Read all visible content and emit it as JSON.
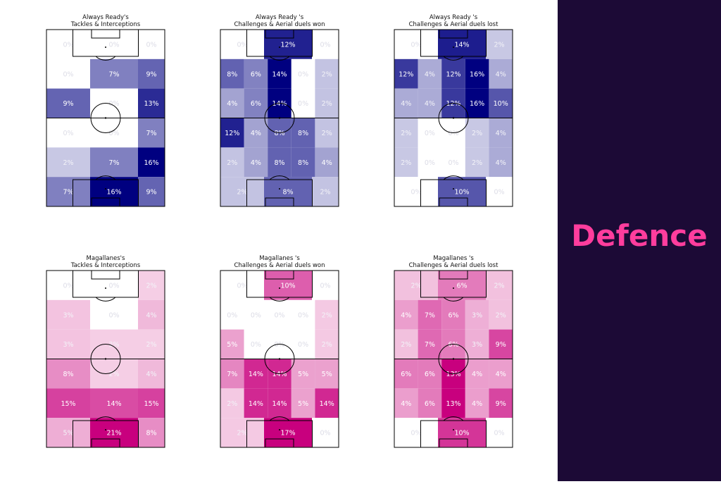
{
  "sidebar": {
    "title": "Defence"
  },
  "colors": {
    "blue": "#000080",
    "pink": "#c8007e",
    "sidebar_bg": "#1c0a36",
    "sidebar_title": "#ff3d9d"
  },
  "chart_data": [
    {
      "type": "heatmap",
      "color": "blue",
      "title_lines": [
        "Always Ready's",
        "Tackles & Interceptions"
      ],
      "rows": [
        [
          {
            "v": 0,
            "l": "0%"
          },
          {
            "v": 0,
            "l": "0%"
          },
          {
            "v": 0,
            "l": "0%"
          }
        ],
        [
          {
            "v": 0,
            "l": "0%"
          },
          {
            "v": 7,
            "l": "7%"
          },
          {
            "v": 9,
            "l": "9%"
          }
        ],
        [
          {
            "v": 9,
            "l": "9%"
          },
          {
            "v": 0,
            "l": "0%"
          },
          {
            "v": 13,
            "l": "13%"
          }
        ],
        [
          {
            "v": 0,
            "l": "0%"
          },
          {
            "v": 0,
            "l": "0%"
          },
          {
            "v": 7,
            "l": "7%"
          }
        ],
        [
          {
            "v": 2,
            "l": "2%"
          },
          {
            "v": 7,
            "l": "7%"
          },
          {
            "v": 16,
            "l": "16%"
          }
        ],
        [
          {
            "v": 7,
            "l": "7%"
          },
          {
            "v": 16,
            "l": "16%"
          },
          {
            "v": 9,
            "l": "9%"
          }
        ]
      ]
    },
    {
      "type": "heatmap",
      "color": "blue",
      "title_lines": [
        "Always Ready 's",
        "Challenges & Aerial duels won"
      ],
      "rows": [
        [
          {
            "v": 0,
            "l": "0%"
          },
          {
            "v": 12,
            "l": "12%"
          },
          {
            "v": 0,
            "l": "0%"
          }
        ],
        [
          {
            "v": 8,
            "l": "8%"
          },
          {
            "v": 6,
            "l": "6%"
          },
          {
            "v": 14,
            "l": "14%"
          },
          {
            "v": 0,
            "l": "0%"
          },
          {
            "v": 2,
            "l": "2%"
          }
        ],
        [
          {
            "v": 4,
            "l": "4%"
          },
          {
            "v": 6,
            "l": "6%"
          },
          {
            "v": 14,
            "l": "14%"
          },
          {
            "v": 0,
            "l": "0%"
          },
          {
            "v": 2,
            "l": "2%"
          }
        ],
        [
          {
            "v": 12,
            "l": "12%"
          },
          {
            "v": 4,
            "l": "4%"
          },
          {
            "v": 8,
            "l": "8%"
          },
          {
            "v": 8,
            "l": "8%"
          },
          {
            "v": 2,
            "l": "2%"
          }
        ],
        [
          {
            "v": 2,
            "l": "2%"
          },
          {
            "v": 4,
            "l": "4%"
          },
          {
            "v": 8,
            "l": "8%"
          },
          {
            "v": 8,
            "l": "8%"
          },
          {
            "v": 4,
            "l": "4%"
          }
        ],
        [
          {
            "v": 2,
            "l": "2%"
          },
          {
            "v": 8,
            "l": "8%"
          },
          {
            "v": 2,
            "l": "2%"
          }
        ]
      ]
    },
    {
      "type": "heatmap",
      "color": "blue",
      "title_lines": [
        "Always Ready 's",
        "Challenges & Aerial duels lost"
      ],
      "rows": [
        [
          {
            "v": 0,
            "l": "0%"
          },
          {
            "v": 14,
            "l": "14%"
          },
          {
            "v": 2,
            "l": "2%"
          }
        ],
        [
          {
            "v": 12,
            "l": "12%"
          },
          {
            "v": 4,
            "l": "4%"
          },
          {
            "v": 12,
            "l": "12%"
          },
          {
            "v": 16,
            "l": "16%"
          },
          {
            "v": 4,
            "l": "4%"
          }
        ],
        [
          {
            "v": 4,
            "l": "4%"
          },
          {
            "v": 4,
            "l": "4%"
          },
          {
            "v": 12,
            "l": "12%"
          },
          {
            "v": 16,
            "l": "16%"
          },
          {
            "v": 10,
            "l": "10%"
          }
        ],
        [
          {
            "v": 2,
            "l": "2%"
          },
          {
            "v": 0,
            "l": "0%"
          },
          {
            "v": 0,
            "l": "0%"
          },
          {
            "v": 2,
            "l": "2%"
          },
          {
            "v": 4,
            "l": "4%"
          }
        ],
        [
          {
            "v": 2,
            "l": "2%"
          },
          {
            "v": 0,
            "l": "0%"
          },
          {
            "v": 0,
            "l": "0%"
          },
          {
            "v": 2,
            "l": "2%"
          },
          {
            "v": 4,
            "l": "4%"
          }
        ],
        [
          {
            "v": 0,
            "l": "0%"
          },
          {
            "v": 10,
            "l": "10%"
          },
          {
            "v": 0,
            "l": "0%"
          }
        ]
      ]
    },
    {
      "type": "heatmap",
      "color": "pink",
      "title_lines": [
        "Magallanes's",
        "Tackles & Interceptions"
      ],
      "rows": [
        [
          {
            "v": 0,
            "l": "0%"
          },
          {
            "v": 0,
            "l": "0%"
          },
          {
            "v": 2,
            "l": "2%"
          }
        ],
        [
          {
            "v": 3,
            "l": "3%"
          },
          {
            "v": 0,
            "l": "0%"
          },
          {
            "v": 4,
            "l": "4%"
          }
        ],
        [
          {
            "v": 3,
            "l": "3%"
          },
          {
            "v": 2,
            "l": "2%"
          },
          {
            "v": 2,
            "l": "2%"
          }
        ],
        [
          {
            "v": 8,
            "l": "8%"
          },
          {
            "v": 2,
            "l": "2%"
          },
          {
            "v": 4,
            "l": "4%"
          }
        ],
        [
          {
            "v": 15,
            "l": "15%"
          },
          {
            "v": 14,
            "l": "14%"
          },
          {
            "v": 15,
            "l": "15%"
          }
        ],
        [
          {
            "v": 5,
            "l": "5%"
          },
          {
            "v": 21,
            "l": "21%"
          },
          {
            "v": 8,
            "l": "8%"
          }
        ]
      ]
    },
    {
      "type": "heatmap",
      "color": "pink",
      "title_lines": [
        "Magallanes 's",
        "Challenges & Aerial duels won"
      ],
      "rows": [
        [
          {
            "v": 0,
            "l": "0%"
          },
          {
            "v": 10,
            "l": "10%"
          },
          {
            "v": 0,
            "l": "0%"
          }
        ],
        [
          {
            "v": 0,
            "l": "0%"
          },
          {
            "v": 0,
            "l": "0%"
          },
          {
            "v": 0,
            "l": "0%"
          },
          {
            "v": 0,
            "l": "0%"
          },
          {
            "v": 2,
            "l": "2%"
          }
        ],
        [
          {
            "v": 5,
            "l": "5%"
          },
          {
            "v": 0,
            "l": "0%"
          },
          {
            "v": 0,
            "l": "0%"
          },
          {
            "v": 0,
            "l": "0%"
          },
          {
            "v": 2,
            "l": "2%"
          }
        ],
        [
          {
            "v": 7,
            "l": "7%"
          },
          {
            "v": 14,
            "l": "14%"
          },
          {
            "v": 14,
            "l": "14%"
          },
          {
            "v": 5,
            "l": "5%"
          },
          {
            "v": 5,
            "l": "5%"
          }
        ],
        [
          {
            "v": 2,
            "l": "2%"
          },
          {
            "v": 14,
            "l": "14%"
          },
          {
            "v": 14,
            "l": "14%"
          },
          {
            "v": 5,
            "l": "5%"
          },
          {
            "v": 14,
            "l": "14%"
          }
        ],
        [
          {
            "v": 2,
            "l": "2%"
          },
          {
            "v": 17,
            "l": "17%"
          },
          {
            "v": 0,
            "l": "0%"
          }
        ]
      ]
    },
    {
      "type": "heatmap",
      "color": "pink",
      "title_lines": [
        "Magallanes 's",
        "Challenges & Aerial duels lost"
      ],
      "rows": [
        [
          {
            "v": 2,
            "l": "2%"
          },
          {
            "v": 6,
            "l": "6%"
          },
          {
            "v": 2,
            "l": "2%"
          }
        ],
        [
          {
            "v": 4,
            "l": "4%"
          },
          {
            "v": 7,
            "l": "7%"
          },
          {
            "v": 6,
            "l": "6%"
          },
          {
            "v": 3,
            "l": "3%"
          },
          {
            "v": 2,
            "l": "2%"
          }
        ],
        [
          {
            "v": 2,
            "l": "2%"
          },
          {
            "v": 7,
            "l": "7%"
          },
          {
            "v": 6,
            "l": "6%"
          },
          {
            "v": 3,
            "l": "3%"
          },
          {
            "v": 9,
            "l": "9%"
          }
        ],
        [
          {
            "v": 6,
            "l": "6%"
          },
          {
            "v": 6,
            "l": "6%"
          },
          {
            "v": 13,
            "l": "13%"
          },
          {
            "v": 4,
            "l": "4%"
          },
          {
            "v": 4,
            "l": "4%"
          }
        ],
        [
          {
            "v": 4,
            "l": "4%"
          },
          {
            "v": 6,
            "l": "6%"
          },
          {
            "v": 13,
            "l": "13%"
          },
          {
            "v": 4,
            "l": "4%"
          },
          {
            "v": 9,
            "l": "9%"
          }
        ],
        [
          {
            "v": 0,
            "l": "0%"
          },
          {
            "v": 10,
            "l": "10%"
          },
          {
            "v": 0,
            "l": "0%"
          }
        ]
      ]
    }
  ]
}
